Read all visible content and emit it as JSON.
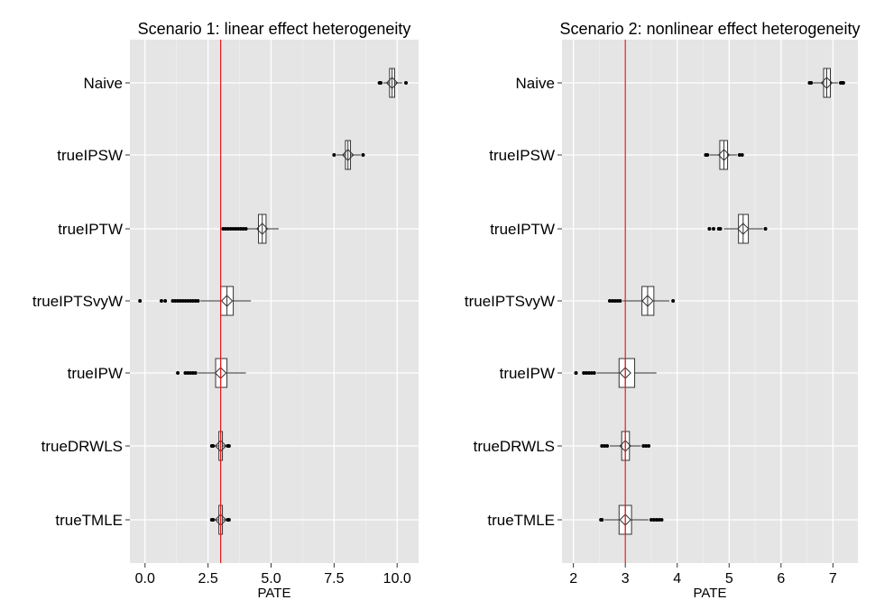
{
  "chart_data": [
    {
      "type": "boxplot",
      "title": "Scenario 1: linear effect heterogeneity",
      "xlabel": "PATE",
      "ylabel": "",
      "xlim": [
        -0.6,
        10.85
      ],
      "x_ticks": [
        0.0,
        2.5,
        5.0,
        7.5,
        10.0
      ],
      "x_tick_labels": [
        "0.0",
        "2.5",
        "5.0",
        "7.5",
        "10.0"
      ],
      "reference_line": 3.0,
      "reference_color": "#e31a1c",
      "grid": true,
      "categories": [
        "Naive",
        "trueIPSW",
        "trueIPTW",
        "trueIPTSvyW",
        "trueIPW",
        "trueDRWLS",
        "trueTMLE"
      ],
      "boxes": [
        {
          "name": "Naive",
          "q1": 9.7,
          "median": 9.8,
          "q3": 9.9,
          "whisker_low": 9.45,
          "whisker_high": 10.2,
          "mean": 9.8,
          "outliers": [
            9.3,
            9.35,
            10.35
          ]
        },
        {
          "name": "trueIPSW",
          "q1": 7.95,
          "median": 8.05,
          "q3": 8.15,
          "whisker_low": 7.6,
          "whisker_high": 8.55,
          "mean": 8.05,
          "outliers": [
            7.5,
            8.65
          ]
        },
        {
          "name": "trueIPTW",
          "q1": 4.5,
          "median": 4.65,
          "q3": 4.8,
          "whisker_low": 3.6,
          "whisker_high": 5.3,
          "mean": 4.65,
          "outliers": [
            3.1,
            3.2,
            3.3,
            3.4,
            3.5,
            3.6,
            3.7,
            3.8,
            3.9,
            4.0
          ]
        },
        {
          "name": "trueIPTSvyW",
          "q1": 3.0,
          "median": 3.25,
          "q3": 3.5,
          "whisker_low": 2.2,
          "whisker_high": 4.2,
          "mean": 3.25,
          "outliers": [
            -0.2,
            0.65,
            0.8,
            1.1,
            1.2,
            1.3,
            1.4,
            1.5,
            1.6,
            1.7,
            1.8,
            1.9,
            2.0,
            2.1
          ]
        },
        {
          "name": "trueIPW",
          "q1": 2.8,
          "median": 3.0,
          "q3": 3.25,
          "whisker_low": 2.1,
          "whisker_high": 4.0,
          "mean": 3.0,
          "outliers": [
            1.3,
            1.6,
            1.7,
            1.8,
            1.9,
            2.0
          ]
        },
        {
          "name": "trueDRWLS",
          "q1": 2.93,
          "median": 3.0,
          "q3": 3.07,
          "whisker_low": 2.75,
          "whisker_high": 3.2,
          "mean": 3.0,
          "outliers": [
            2.65,
            2.7,
            3.28,
            3.33
          ]
        },
        {
          "name": "trueTMLE",
          "q1": 2.93,
          "median": 3.0,
          "q3": 3.07,
          "whisker_low": 2.75,
          "whisker_high": 3.2,
          "mean": 3.0,
          "outliers": [
            2.65,
            2.7,
            3.28,
            3.33
          ]
        }
      ]
    },
    {
      "type": "boxplot",
      "title": "Scenario 2: nonlinear effect heterogeneity",
      "xlabel": "PATE",
      "ylabel": "",
      "xlim": [
        1.78,
        7.48
      ],
      "x_ticks": [
        2,
        3,
        4,
        5,
        6,
        7
      ],
      "x_tick_labels": [
        "2",
        "3",
        "4",
        "5",
        "6",
        "7"
      ],
      "reference_line": 3.0,
      "reference_color": "#e31a1c",
      "grid": true,
      "categories": [
        "Naive",
        "trueIPSW",
        "trueIPTW",
        "trueIPTSvyW",
        "trueIPW",
        "trueDRWLS",
        "trueTMLE"
      ],
      "boxes": [
        {
          "name": "Naive",
          "q1": 6.82,
          "median": 6.88,
          "q3": 6.95,
          "whisker_low": 6.62,
          "whisker_high": 7.1,
          "mean": 6.88,
          "outliers": [
            6.55,
            6.58,
            7.15,
            7.18,
            7.2
          ]
        },
        {
          "name": "trueIPSW",
          "q1": 4.82,
          "median": 4.9,
          "q3": 4.97,
          "whisker_low": 4.62,
          "whisker_high": 5.15,
          "mean": 4.9,
          "outliers": [
            4.55,
            4.58,
            5.2,
            5.25
          ]
        },
        {
          "name": "trueIPTW",
          "q1": 5.18,
          "median": 5.27,
          "q3": 5.37,
          "whisker_low": 4.9,
          "whisker_high": 5.65,
          "mean": 5.27,
          "outliers": [
            4.62,
            4.7,
            4.8,
            4.83,
            5.7
          ]
        },
        {
          "name": "trueIPTSvyW",
          "q1": 3.32,
          "median": 3.43,
          "q3": 3.55,
          "whisker_low": 2.95,
          "whisker_high": 3.85,
          "mean": 3.43,
          "outliers": [
            2.7,
            2.75,
            2.8,
            2.85,
            2.9,
            3.92
          ]
        },
        {
          "name": "trueIPW",
          "q1": 2.88,
          "median": 3.0,
          "q3": 3.18,
          "whisker_low": 2.45,
          "whisker_high": 3.6,
          "mean": 3.0,
          "outliers": [
            2.05,
            2.2,
            2.25,
            2.3,
            2.35,
            2.4
          ]
        },
        {
          "name": "trueDRWLS",
          "q1": 2.93,
          "median": 3.0,
          "q3": 3.08,
          "whisker_low": 2.7,
          "whisker_high": 3.3,
          "mean": 3.0,
          "outliers": [
            2.55,
            2.6,
            2.65,
            3.35,
            3.4,
            3.45
          ]
        },
        {
          "name": "trueTMLE",
          "q1": 2.88,
          "median": 3.0,
          "q3": 3.12,
          "whisker_low": 2.6,
          "whisker_high": 3.45,
          "mean": 3.0,
          "outliers": [
            2.53,
            2.55,
            3.5,
            3.55,
            3.6,
            3.65,
            3.7
          ]
        }
      ]
    }
  ]
}
